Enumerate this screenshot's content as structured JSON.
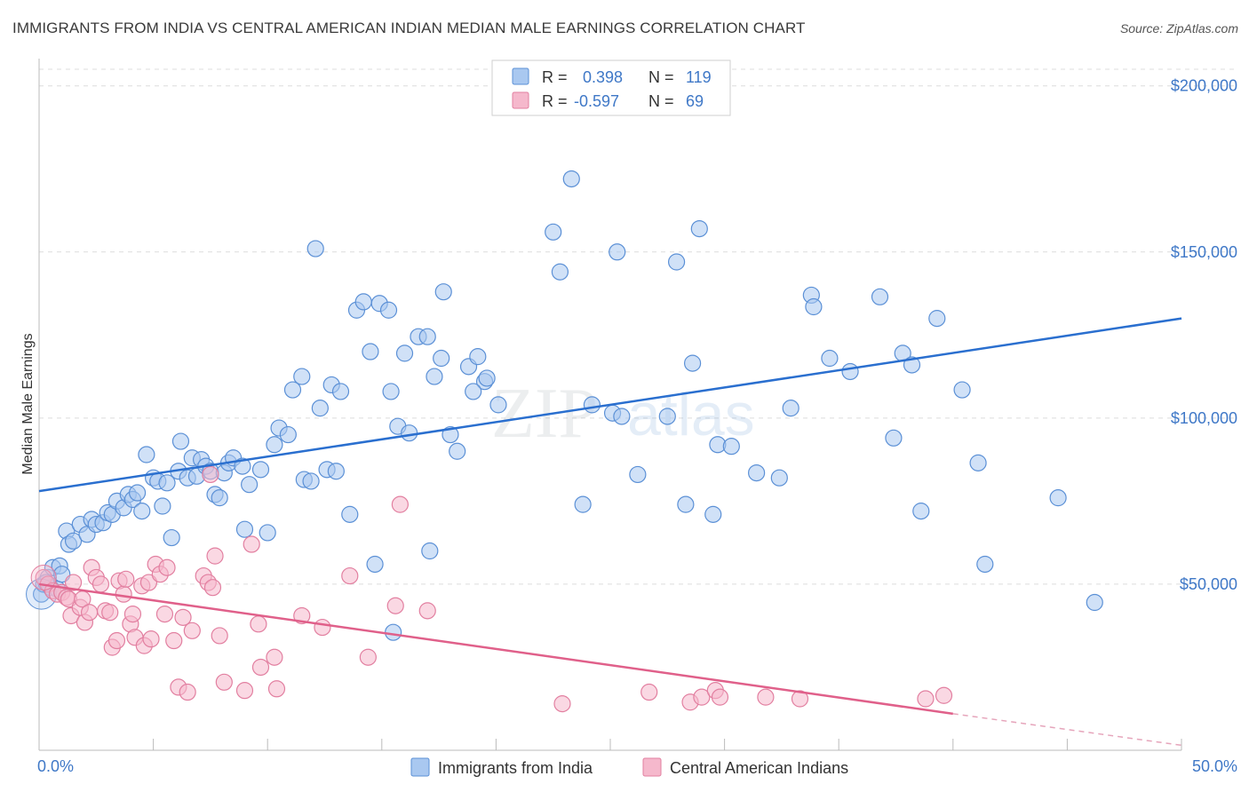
{
  "header": {
    "title": "IMMIGRANTS FROM INDIA VS CENTRAL AMERICAN INDIAN MEDIAN MALE EARNINGS CORRELATION CHART",
    "source": "Source: ZipAtlas.com"
  },
  "watermark": {
    "zip": "ZIP",
    "atlas": "atlas"
  },
  "legend": {
    "r_label": "R =",
    "n_label": "N =",
    "rows": [
      {
        "r": "0.398",
        "n": "119",
        "color": "#a9c8f0",
        "stroke": "#5b90d6"
      },
      {
        "r": "-0.597",
        "n": "69",
        "color": "#f5b8cc",
        "stroke": "#e27fa0"
      }
    ]
  },
  "chart_data": {
    "type": "scatter",
    "title": "IMMIGRANTS FROM INDIA VS CENTRAL AMERICAN INDIAN MEDIAN MALE EARNINGS CORRELATION CHART",
    "xlabel": "",
    "ylabel": "Median Male Earnings",
    "xlim": [
      0,
      50
    ],
    "ylim": [
      0,
      205000
    ],
    "x_tick_labels": [
      "0.0%",
      "50.0%"
    ],
    "y_ticks": [
      50000,
      100000,
      150000,
      200000
    ],
    "y_tick_labels": [
      "$50,000",
      "$100,000",
      "$150,000",
      "$200,000"
    ],
    "grid": "horizontal dashed",
    "legend_position": "top-center",
    "series": [
      {
        "name": "Immigrants from India",
        "color": "#a9c8f0",
        "stroke": "#5b90d6",
        "trend_color": "#2a6fcf",
        "trend": {
          "x": [
            0,
            50
          ],
          "y": [
            78000,
            130000
          ]
        },
        "points": [
          [
            0.1,
            47000
          ],
          [
            0.2,
            50000
          ],
          [
            0.4,
            52000
          ],
          [
            0.6,
            55000
          ],
          [
            0.9,
            55500
          ],
          [
            0.5,
            49000
          ],
          [
            1.2,
            66000
          ],
          [
            1.3,
            62000
          ],
          [
            1.5,
            63000
          ],
          [
            1.8,
            68000
          ],
          [
            2.1,
            65000
          ],
          [
            2.3,
            69500
          ],
          [
            2.5,
            68000
          ],
          [
            2.8,
            68500
          ],
          [
            3.0,
            71500
          ],
          [
            3.2,
            71000
          ],
          [
            3.4,
            75000
          ],
          [
            3.7,
            73000
          ],
          [
            3.9,
            77000
          ],
          [
            4.1,
            75500
          ],
          [
            4.3,
            77500
          ],
          [
            4.5,
            72000
          ],
          [
            4.7,
            89000
          ],
          [
            5.0,
            82000
          ],
          [
            5.2,
            81000
          ],
          [
            5.4,
            73500
          ],
          [
            5.6,
            80500
          ],
          [
            5.8,
            64000
          ],
          [
            6.1,
            84000
          ],
          [
            6.2,
            93000
          ],
          [
            6.5,
            82000
          ],
          [
            6.7,
            88000
          ],
          [
            6.9,
            82500
          ],
          [
            7.1,
            87500
          ],
          [
            7.3,
            85500
          ],
          [
            7.5,
            84000
          ],
          [
            7.7,
            77000
          ],
          [
            7.9,
            76000
          ],
          [
            8.1,
            83500
          ],
          [
            8.3,
            86500
          ],
          [
            8.5,
            88000
          ],
          [
            8.9,
            85500
          ],
          [
            9.2,
            80000
          ],
          [
            9.0,
            66500
          ],
          [
            9.7,
            84500
          ],
          [
            10.0,
            65500
          ],
          [
            10.3,
            92000
          ],
          [
            10.5,
            97000
          ],
          [
            10.9,
            95000
          ],
          [
            11.1,
            108500
          ],
          [
            11.5,
            112500
          ],
          [
            11.6,
            81500
          ],
          [
            11.9,
            81000
          ],
          [
            12.1,
            151000
          ],
          [
            12.3,
            103000
          ],
          [
            12.6,
            84500
          ],
          [
            12.8,
            110000
          ],
          [
            13.0,
            84000
          ],
          [
            13.2,
            108000
          ],
          [
            13.6,
            71000
          ],
          [
            13.9,
            132500
          ],
          [
            14.2,
            135000
          ],
          [
            14.5,
            120000
          ],
          [
            14.7,
            56000
          ],
          [
            14.9,
            134500
          ],
          [
            15.3,
            132500
          ],
          [
            15.4,
            108000
          ],
          [
            15.5,
            35500
          ],
          [
            15.7,
            97500
          ],
          [
            16.0,
            119500
          ],
          [
            16.2,
            95500
          ],
          [
            16.6,
            124500
          ],
          [
            17.0,
            124500
          ],
          [
            17.1,
            60000
          ],
          [
            17.3,
            112500
          ],
          [
            17.6,
            118000
          ],
          [
            17.7,
            138000
          ],
          [
            18.0,
            95000
          ],
          [
            18.3,
            90000
          ],
          [
            18.8,
            115500
          ],
          [
            19.2,
            118500
          ],
          [
            19.5,
            111000
          ],
          [
            19.6,
            112000
          ],
          [
            20.1,
            104000
          ],
          [
            22.5,
            156000
          ],
          [
            22.8,
            144000
          ],
          [
            23.3,
            172000
          ],
          [
            23.8,
            74000
          ],
          [
            24.2,
            104000
          ],
          [
            25.1,
            101500
          ],
          [
            25.3,
            150000
          ],
          [
            26.2,
            83000
          ],
          [
            27.5,
            100500
          ],
          [
            27.9,
            147000
          ],
          [
            28.3,
            74000
          ],
          [
            28.6,
            116500
          ],
          [
            28.9,
            157000
          ],
          [
            29.5,
            71000
          ],
          [
            29.7,
            92000
          ],
          [
            30.3,
            91500
          ],
          [
            31.4,
            83500
          ],
          [
            32.4,
            82000
          ],
          [
            32.9,
            103000
          ],
          [
            33.8,
            137000
          ],
          [
            33.9,
            133500
          ],
          [
            34.6,
            118000
          ],
          [
            35.5,
            114000
          ],
          [
            36.8,
            136500
          ],
          [
            37.4,
            94000
          ],
          [
            37.8,
            119500
          ],
          [
            38.2,
            116000
          ],
          [
            38.6,
            72000
          ],
          [
            39.3,
            130000
          ],
          [
            40.4,
            108500
          ],
          [
            41.1,
            86500
          ],
          [
            41.4,
            56000
          ],
          [
            44.6,
            76000
          ],
          [
            46.2,
            44500
          ],
          [
            0.8,
            48500
          ],
          [
            1.0,
            53000
          ],
          [
            0.3,
            50500
          ],
          [
            19.0,
            108000
          ],
          [
            25.5,
            100500
          ]
        ]
      },
      {
        "name": "Central American Indians",
        "color": "#f5b8cc",
        "stroke": "#e27fa0",
        "trend_color": "#e0608a",
        "trend": {
          "x": [
            0,
            40
          ],
          "y": [
            50000,
            11000
          ]
        },
        "trend_dashed_to": {
          "x": 50,
          "y": 1500
        },
        "points": [
          [
            0.2,
            52000
          ],
          [
            0.4,
            50000
          ],
          [
            0.6,
            48000
          ],
          [
            0.8,
            47000
          ],
          [
            1.0,
            47500
          ],
          [
            1.2,
            46000
          ],
          [
            1.3,
            45500
          ],
          [
            1.4,
            40500
          ],
          [
            1.5,
            50500
          ],
          [
            1.8,
            43000
          ],
          [
            1.9,
            45500
          ],
          [
            2.0,
            38500
          ],
          [
            2.2,
            41500
          ],
          [
            2.3,
            55000
          ],
          [
            2.5,
            52000
          ],
          [
            2.7,
            50000
          ],
          [
            2.9,
            42000
          ],
          [
            3.1,
            41500
          ],
          [
            3.2,
            31000
          ],
          [
            3.4,
            33000
          ],
          [
            3.5,
            51000
          ],
          [
            3.7,
            47000
          ],
          [
            3.8,
            51500
          ],
          [
            4.0,
            38000
          ],
          [
            4.1,
            41000
          ],
          [
            4.2,
            34000
          ],
          [
            4.5,
            49500
          ],
          [
            4.6,
            31500
          ],
          [
            4.8,
            50500
          ],
          [
            4.9,
            33500
          ],
          [
            5.1,
            56000
          ],
          [
            5.3,
            53000
          ],
          [
            5.5,
            41000
          ],
          [
            5.6,
            55000
          ],
          [
            5.9,
            33000
          ],
          [
            6.1,
            19000
          ],
          [
            6.3,
            40000
          ],
          [
            6.5,
            17500
          ],
          [
            6.7,
            36000
          ],
          [
            7.2,
            52500
          ],
          [
            7.4,
            50500
          ],
          [
            7.5,
            83000
          ],
          [
            7.6,
            49000
          ],
          [
            7.7,
            58500
          ],
          [
            7.9,
            34500
          ],
          [
            8.1,
            20500
          ],
          [
            9.0,
            18000
          ],
          [
            9.3,
            62000
          ],
          [
            9.6,
            38000
          ],
          [
            9.7,
            25000
          ],
          [
            10.3,
            28000
          ],
          [
            10.4,
            18500
          ],
          [
            11.5,
            40500
          ],
          [
            12.4,
            37000
          ],
          [
            13.6,
            52500
          ],
          [
            14.4,
            28000
          ],
          [
            15.6,
            43500
          ],
          [
            15.8,
            74000
          ],
          [
            17.0,
            42000
          ],
          [
            22.9,
            14000
          ],
          [
            26.7,
            17500
          ],
          [
            28.5,
            14500
          ],
          [
            29.0,
            16000
          ],
          [
            29.6,
            18000
          ],
          [
            29.8,
            16000
          ],
          [
            31.8,
            16000
          ],
          [
            33.3,
            15500
          ],
          [
            38.8,
            15500
          ],
          [
            39.6,
            16500
          ]
        ]
      }
    ]
  },
  "bottom_legend": [
    {
      "label": "Immigrants from India",
      "color": "#a9c8f0",
      "stroke": "#5b90d6"
    },
    {
      "label": "Central American Indians",
      "color": "#f5b8cc",
      "stroke": "#e27fa0"
    }
  ]
}
